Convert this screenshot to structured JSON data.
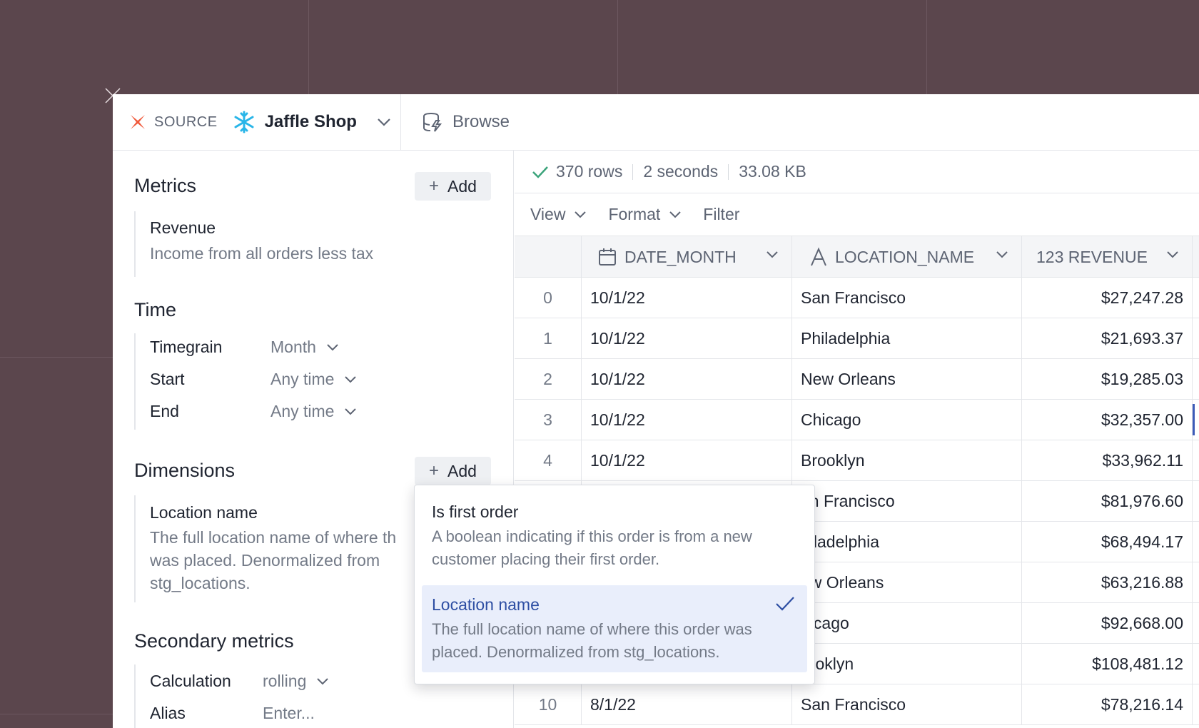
{
  "header": {
    "source_label": "SOURCE",
    "source_name": "Jaffle Shop",
    "browse_label": "Browse"
  },
  "metrics": {
    "title": "Metrics",
    "add_label": "Add",
    "item": {
      "name": "Revenue",
      "description": "Income from all orders less tax"
    }
  },
  "time": {
    "title": "Time",
    "timegrain_label": "Timegrain",
    "timegrain_value": "Month",
    "start_label": "Start",
    "start_value": "Any time",
    "end_label": "End",
    "end_value": "Any time"
  },
  "dimensions": {
    "title": "Dimensions",
    "add_label": "Add",
    "item": {
      "name": "Location name",
      "description_lines": [
        "The full location name of where th",
        "was placed. Denormalized from",
        "stg_locations."
      ]
    }
  },
  "secondary": {
    "title": "Secondary metrics",
    "calc_label": "Calculation",
    "calc_value": "rolling",
    "alias_label": "Alias",
    "alias_placeholder": "Enter..."
  },
  "stats": {
    "rows": "370 rows",
    "duration": "2 seconds",
    "size": "33.08 KB"
  },
  "toolbar": {
    "view": "View",
    "format": "Format",
    "filter": "Filter"
  },
  "table": {
    "columns": [
      "DATE_MONTH",
      "LOCATION_NAME",
      "123 REVENUE"
    ],
    "rows": [
      {
        "idx": "0",
        "date": "10/1/22",
        "loc": "San Francisco",
        "rev": "$27,247.28"
      },
      {
        "idx": "1",
        "date": "10/1/22",
        "loc": "Philadelphia",
        "rev": "$21,693.37"
      },
      {
        "idx": "2",
        "date": "10/1/22",
        "loc": "New Orleans",
        "rev": "$19,285.03"
      },
      {
        "idx": "3",
        "date": "10/1/22",
        "loc": "Chicago",
        "rev": "$32,357.00"
      },
      {
        "idx": "4",
        "date": "10/1/22",
        "loc": "Brooklyn",
        "rev": "$33,962.11"
      },
      {
        "idx": "",
        "date": "",
        "loc": "an Francisco",
        "rev": "$81,976.60"
      },
      {
        "idx": "",
        "date": "",
        "loc": "hiladelphia",
        "rev": "$68,494.17"
      },
      {
        "idx": "",
        "date": "",
        "loc": "ew Orleans",
        "rev": "$63,216.88"
      },
      {
        "idx": "",
        "date": "",
        "loc": "hicago",
        "rev": "$92,668.00"
      },
      {
        "idx": "",
        "date": "",
        "loc": "rooklyn",
        "rev": "$108,481.12"
      },
      {
        "idx": "10",
        "date": "8/1/22",
        "loc": "San Francisco",
        "rev": "$78,216.14"
      }
    ]
  },
  "dropdown": {
    "options": [
      {
        "title": "Is first order",
        "desc_lines": [
          "A boolean indicating if this order is from a new",
          "customer placing their first order."
        ]
      },
      {
        "title": "Location name",
        "desc_lines": [
          "The full location name of where this order was",
          "placed. Denormalized from stg_locations."
        ]
      }
    ]
  },
  "colors": {
    "background": "#5b464d",
    "accent": "#2d4ea3",
    "selected_bg": "#e9eefb",
    "success": "#3aa37a",
    "dbt_orange": "#f05a3c",
    "snowflake_blue": "#29b5e8"
  }
}
